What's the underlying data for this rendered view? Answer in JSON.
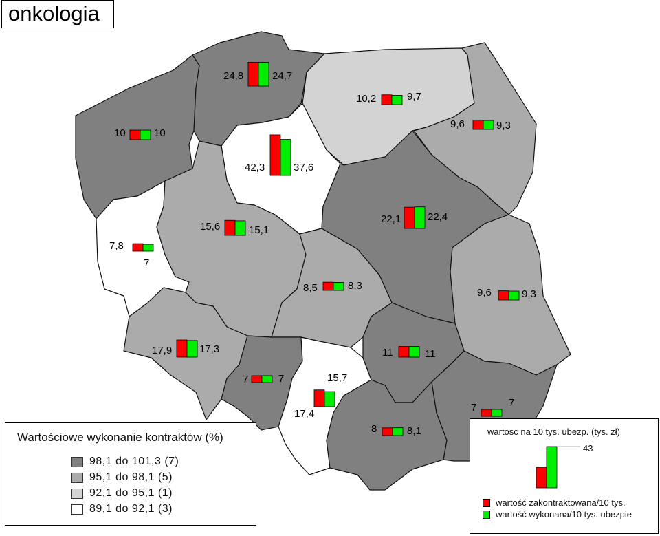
{
  "title": "onkologia",
  "colors": {
    "class1": "#808080",
    "class2": "#ababab",
    "class3": "#d3d3d3",
    "class4": "#ffffff",
    "contracted": "#ff0000",
    "executed": "#00ee00"
  },
  "legend_classes": {
    "title": "Wartościowe wykonanie kontraktów (%)",
    "items": [
      {
        "label": "98,1 do 101,3  (7)",
        "color": "#808080"
      },
      {
        "label": "95,1 do   98,1  (5)",
        "color": "#ababab"
      },
      {
        "label": "92,1 do   95,1  (1)",
        "color": "#d3d3d3"
      },
      {
        "label": "89,1 do   92,1  (3)",
        "color": "#ffffff"
      }
    ]
  },
  "legend_bars": {
    "title": "wartosc na 10 tys. ubezp. (tys. zł)",
    "scale_value": "43",
    "contracted_label": "wartość zakontraktowana/10 tys.",
    "executed_label": "wartość wykonana/10 tys. ubezpie"
  },
  "chart_data": {
    "type": "map",
    "scale_max": 43,
    "regions": [
      {
        "id": "zachodniopomorskie",
        "class": 1,
        "contracted": "10",
        "executed": "10"
      },
      {
        "id": "pomorskie",
        "class": 1,
        "contracted": "24,8",
        "executed": "24,7"
      },
      {
        "id": "warminsko-mazurskie",
        "class": 3,
        "contracted": "10,2",
        "executed": "9,7"
      },
      {
        "id": "podlaskie",
        "class": 2,
        "contracted": "9,6",
        "executed": "9,3"
      },
      {
        "id": "kujawsko-pomorskie",
        "class": 4,
        "contracted": "42,3",
        "executed": "37,6"
      },
      {
        "id": "lubuskie",
        "class": 4,
        "contracted": "7,8",
        "executed": "7"
      },
      {
        "id": "wielkopolskie",
        "class": 2,
        "contracted": "15,6",
        "executed": "15,1"
      },
      {
        "id": "mazowieckie",
        "class": 1,
        "contracted": "22,1",
        "executed": "22,4"
      },
      {
        "id": "lodzkie",
        "class": 2,
        "contracted": "8,5",
        "executed": "8,3"
      },
      {
        "id": "lubelskie",
        "class": 2,
        "contracted": "9,6",
        "executed": "9,3"
      },
      {
        "id": "dolnoslaskie",
        "class": 2,
        "contracted": "17,9",
        "executed": "17,3"
      },
      {
        "id": "opolskie",
        "class": 1,
        "contracted": "7",
        "executed": "7"
      },
      {
        "id": "slaskie",
        "class": 4,
        "contracted": "17,4",
        "executed": "15,7"
      },
      {
        "id": "swietokrzyskie",
        "class": 1,
        "contracted": "11",
        "executed": "11"
      },
      {
        "id": "malopolskie",
        "class": 1,
        "contracted": "8",
        "executed": "8,1"
      },
      {
        "id": "podkarpackie",
        "class": 1,
        "contracted": "7",
        "executed": "7"
      }
    ]
  }
}
